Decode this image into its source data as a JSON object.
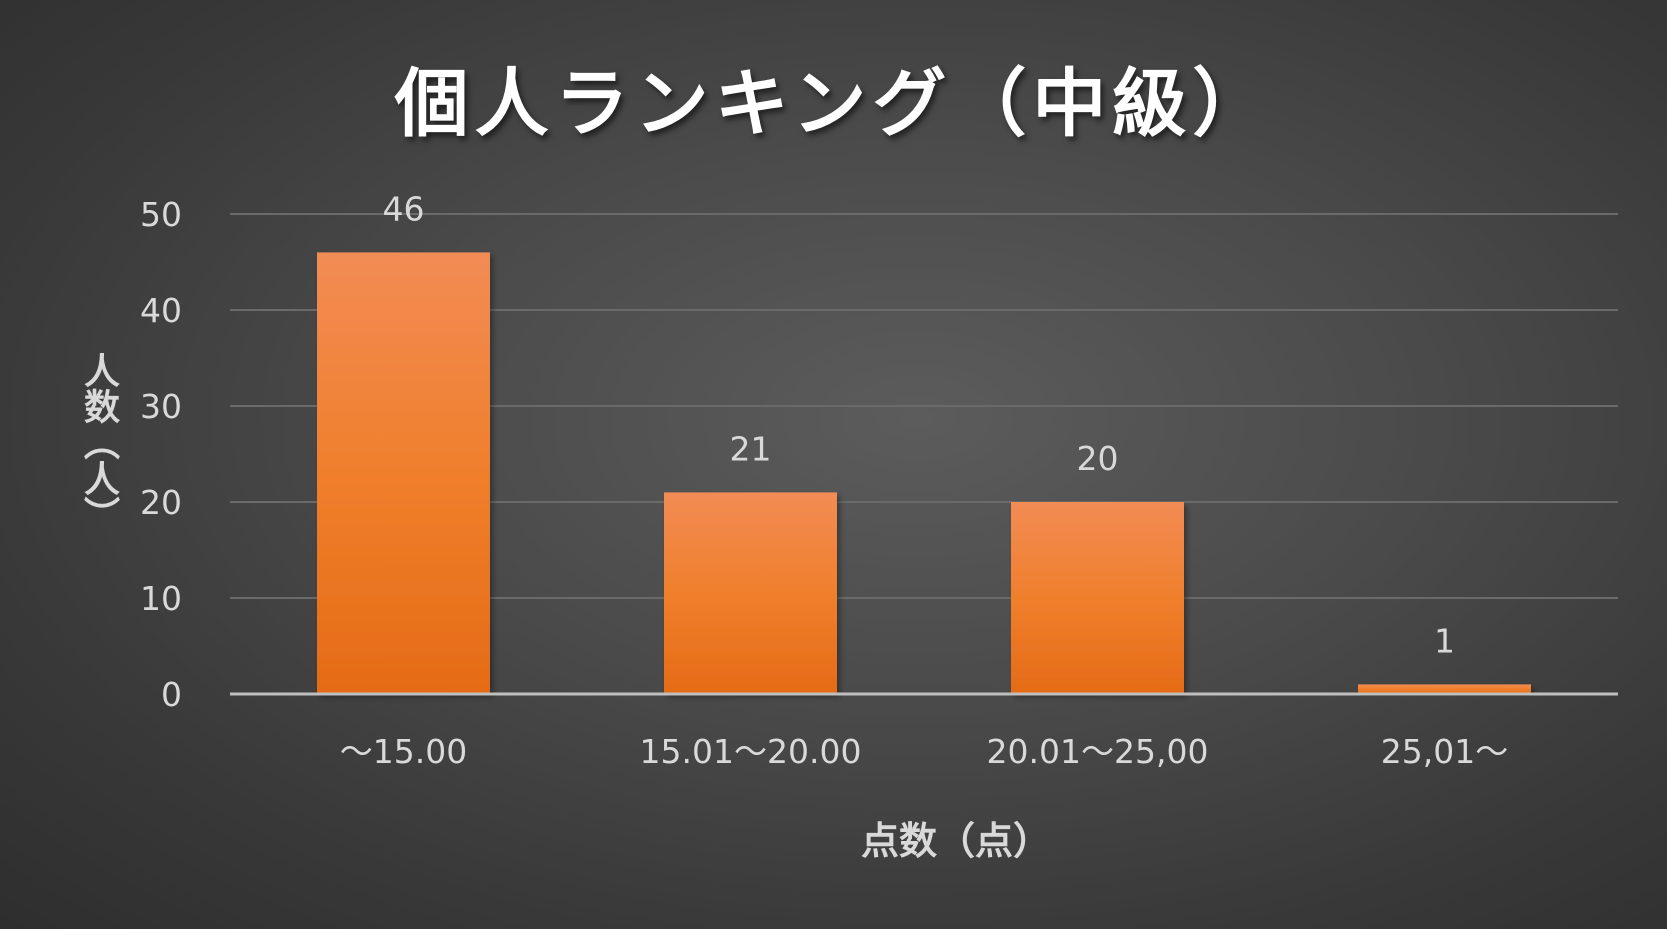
{
  "chart_data": {
    "type": "bar",
    "title": "個人ランキング（中級）",
    "xlabel": "点数（点）",
    "ylabel": "人数（人）",
    "categories": [
      "～15.00",
      "15.01～20.00",
      "20.01～25,00",
      "25,01～"
    ],
    "values": [
      46,
      21,
      20,
      1
    ],
    "ylim": [
      0,
      50
    ],
    "yticks": [
      0,
      10,
      20,
      30,
      40,
      50
    ],
    "grid": true,
    "legend": "none",
    "data_labels": true,
    "bar_color": "#ee7d31"
  }
}
